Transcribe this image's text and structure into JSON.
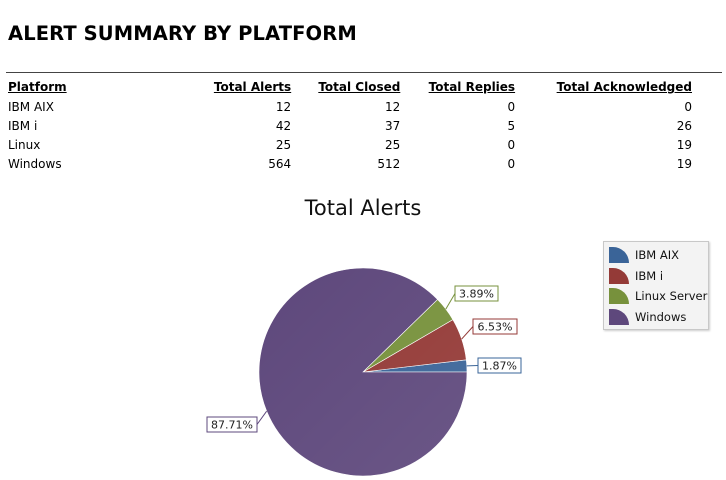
{
  "report": {
    "title": "ALERT SUMMARY BY PLATFORM"
  },
  "table": {
    "headers": [
      "Platform",
      "Total Alerts",
      "Total Closed",
      "Total Replies",
      "Total Acknowledged"
    ],
    "rows": [
      [
        "IBM AIX",
        "12",
        "12",
        "0",
        "0"
      ],
      [
        "IBM i",
        "42",
        "37",
        "5",
        "26"
      ],
      [
        "Linux",
        "25",
        "25",
        "0",
        "19"
      ],
      [
        "Windows",
        "564",
        "512",
        "0",
        "19"
      ]
    ]
  },
  "chart_data": {
    "type": "pie",
    "title": "Total Alerts",
    "categories": [
      "IBM AIX",
      "IBM i",
      "Linux Server",
      "Windows"
    ],
    "values": [
      12,
      42,
      25,
      564
    ],
    "percent_labels": [
      "1.87%",
      "6.53%",
      "3.89%",
      "87.71%"
    ],
    "colors": [
      "#3a6498",
      "#943a37",
      "#77913c",
      "#5e487c"
    ],
    "legend": "top-right"
  }
}
